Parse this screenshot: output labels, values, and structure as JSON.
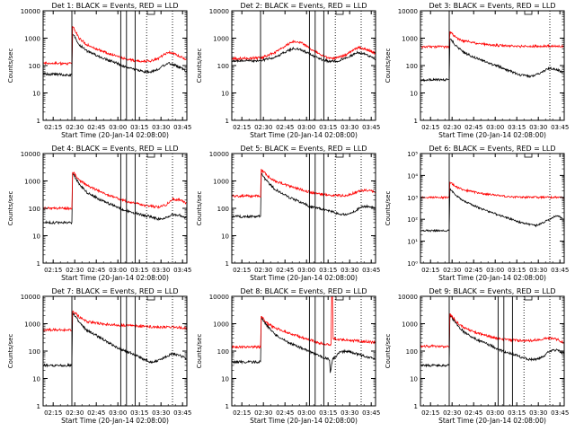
{
  "figure": {
    "subtitle": "Start Time (20-Jan-14 02:08:00)",
    "ylabel": "Counts/sec",
    "xticks": [
      "02:15",
      "02:30",
      "02:45",
      "03:00",
      "03:15",
      "03:30",
      "03:45"
    ],
    "colors": {
      "events": "#000000",
      "lld": "#ff0000",
      "axes": "#000000"
    }
  },
  "chart_data": [
    {
      "type": "line",
      "title": "Det 1: BLACK = Events, RED = LLD",
      "xlabel": "Start Time (20-Jan-14 02:08:00)",
      "ylabel": "Counts/sec",
      "x_unit": "minutes since 02:08:00",
      "xlim": [
        0,
        100
      ],
      "ylim": [
        1,
        10000
      ],
      "yscale": "log",
      "ytick_style": "plain",
      "yticks": [
        "1",
        "10",
        "100",
        "1000",
        "10000"
      ],
      "vlines_solid": [
        20,
        54,
        58,
        64
      ],
      "vlines_dotted": [
        72,
        90
      ],
      "flag": 75,
      "series": [
        {
          "name": "Events",
          "color": "#000000",
          "x": [
            0,
            20,
            20.5,
            25,
            30,
            40,
            50,
            55,
            60,
            65,
            70,
            75,
            80,
            85,
            88,
            92,
            96,
            100
          ],
          "values": [
            50,
            45,
            1500,
            600,
            350,
            200,
            130,
            100,
            80,
            70,
            60,
            60,
            75,
            110,
            120,
            100,
            80,
            60
          ]
        },
        {
          "name": "LLD",
          "color": "#ff0000",
          "x": [
            0,
            20,
            20.5,
            25,
            30,
            40,
            50,
            55,
            60,
            65,
            70,
            75,
            80,
            85,
            88,
            92,
            96,
            100
          ],
          "values": [
            120,
            120,
            2800,
            1000,
            600,
            350,
            230,
            190,
            160,
            150,
            145,
            150,
            180,
            270,
            300,
            260,
            210,
            160
          ]
        }
      ]
    },
    {
      "type": "line",
      "title": "Det 2: BLACK = Events, RED = LLD",
      "xlabel": "Start Time (20-Jan-14 02:08:00)",
      "ylabel": "Counts/sec",
      "x_unit": "minutes since 02:08:00",
      "xlim": [
        0,
        100
      ],
      "ylim": [
        1,
        10000
      ],
      "yscale": "log",
      "ytick_style": "plain",
      "yticks": [
        "1",
        "10",
        "100",
        "1000",
        "10000"
      ],
      "vlines_solid": [
        20,
        54,
        58,
        64
      ],
      "vlines_dotted": [
        72,
        90
      ],
      "flag": 75,
      "series": [
        {
          "name": "Events",
          "color": "#000000",
          "x": [
            0,
            20,
            30,
            38,
            43,
            48,
            55,
            62,
            68,
            74,
            80,
            85,
            88,
            92,
            96,
            100
          ],
          "values": [
            150,
            150,
            200,
            330,
            420,
            380,
            250,
            170,
            140,
            150,
            190,
            260,
            300,
            270,
            220,
            170
          ]
        },
        {
          "name": "LLD",
          "color": "#ff0000",
          "x": [
            0,
            20,
            30,
            38,
            43,
            48,
            55,
            62,
            68,
            74,
            80,
            85,
            88,
            92,
            96,
            100
          ],
          "values": [
            180,
            190,
            300,
            550,
            750,
            700,
            400,
            250,
            180,
            190,
            260,
            380,
            450,
            420,
            350,
            280
          ]
        }
      ]
    },
    {
      "type": "line",
      "title": "Det 3: BLACK = Events, RED = LLD",
      "xlabel": "Start Time (20-Jan-14 02:08:00)",
      "ylabel": "Counts/sec",
      "x_unit": "minutes since 02:08:00",
      "xlim": [
        0,
        100
      ],
      "ylim": [
        1,
        10000
      ],
      "yscale": "log",
      "ytick_style": "plain",
      "yticks": [
        "1",
        "10",
        "100",
        "1000",
        "10000"
      ],
      "vlines_solid": [
        20
      ],
      "vlines_dotted": [
        90
      ],
      "flag": 75,
      "series": [
        {
          "name": "Events",
          "color": "#000000",
          "x": [
            0,
            20,
            20.5,
            25,
            30,
            40,
            50,
            55,
            60,
            65,
            70,
            75,
            80,
            85,
            90,
            95,
            100
          ],
          "values": [
            30,
            30,
            1000,
            500,
            300,
            180,
            110,
            90,
            70,
            55,
            45,
            40,
            45,
            60,
            80,
            70,
            55
          ]
        },
        {
          "name": "LLD",
          "color": "#ff0000",
          "x": [
            0,
            20,
            20.5,
            25,
            30,
            40,
            50,
            60,
            70,
            80,
            90,
            100
          ],
          "values": [
            480,
            480,
            1700,
            1000,
            800,
            650,
            560,
            520,
            500,
            510,
            520,
            500
          ]
        }
      ]
    },
    {
      "type": "line",
      "title": "Det 4: BLACK = Events, RED = LLD",
      "xlabel": "Start Time (20-Jan-14 02:08:00)",
      "ylabel": "Counts/sec",
      "x_unit": "minutes since 02:08:00",
      "xlim": [
        0,
        100
      ],
      "ylim": [
        1,
        10000
      ],
      "yscale": "log",
      "ytick_style": "plain",
      "yticks": [
        "1",
        "10",
        "100",
        "1000",
        "10000"
      ],
      "vlines_solid": [
        54,
        58,
        64
      ],
      "vlines_dotted": [
        72,
        90
      ],
      "flag": 75,
      "series": [
        {
          "name": "Events",
          "color": "#000000",
          "x": [
            0,
            20,
            20.5,
            25,
            30,
            40,
            50,
            55,
            60,
            65,
            70,
            75,
            80,
            85,
            90,
            95,
            100
          ],
          "values": [
            30,
            30,
            1900,
            800,
            400,
            200,
            120,
            90,
            75,
            65,
            55,
            50,
            40,
            45,
            60,
            55,
            45
          ]
        },
        {
          "name": "LLD",
          "color": "#ff0000",
          "x": [
            0,
            20,
            20.5,
            25,
            30,
            40,
            50,
            55,
            60,
            65,
            70,
            75,
            80,
            85,
            90,
            95,
            100
          ],
          "values": [
            100,
            100,
            2200,
            1100,
            700,
            400,
            250,
            200,
            170,
            150,
            130,
            120,
            110,
            130,
            220,
            200,
            150
          ]
        }
      ]
    },
    {
      "type": "line",
      "title": "Det 5: BLACK = Events, RED = LLD",
      "xlabel": "Start Time (20-Jan-14 02:08:00)",
      "ylabel": "Counts/sec",
      "x_unit": "minutes since 02:08:00",
      "xlim": [
        0,
        100
      ],
      "ylim": [
        1,
        10000
      ],
      "yscale": "log",
      "ytick_style": "plain",
      "yticks": [
        "1",
        "10",
        "100",
        "1000",
        "10000"
      ],
      "vlines_solid": [
        54,
        58,
        64
      ],
      "vlines_dotted": [
        72,
        90
      ],
      "flag": 75,
      "series": [
        {
          "name": "Events",
          "color": "#000000",
          "x": [
            0,
            20,
            20.5,
            25,
            30,
            40,
            50,
            55,
            60,
            65,
            70,
            75,
            80,
            85,
            90,
            95,
            100
          ],
          "values": [
            50,
            50,
            1800,
            900,
            500,
            250,
            150,
            110,
            100,
            90,
            75,
            60,
            60,
            75,
            110,
            120,
            100
          ]
        },
        {
          "name": "LLD",
          "color": "#ff0000",
          "x": [
            0,
            20,
            20.5,
            25,
            30,
            40,
            50,
            55,
            60,
            65,
            70,
            75,
            80,
            85,
            90,
            95,
            100
          ],
          "values": [
            280,
            280,
            2600,
            1500,
            1000,
            650,
            450,
            380,
            340,
            320,
            300,
            290,
            300,
            360,
            440,
            460,
            380
          ]
        }
      ]
    },
    {
      "type": "line",
      "title": "Det 6: BLACK = Events, RED = LLD",
      "xlabel": "Start Time (20-Jan-14 02:08:00)",
      "ylabel": "Counts/sec",
      "x_unit": "minutes since 02:08:00",
      "xlim": [
        0,
        100
      ],
      "ylim": [
        1,
        100000
      ],
      "yscale": "log",
      "ytick_style": "power",
      "yticks": [
        "10⁰",
        "10¹",
        "10²",
        "10³",
        "10⁴",
        "10⁵"
      ],
      "vlines_solid": [
        20
      ],
      "vlines_dotted": [
        90
      ],
      "flag": 75,
      "series": [
        {
          "name": "Events",
          "color": "#000000",
          "x": [
            0,
            20,
            20.5,
            25,
            30,
            40,
            50,
            55,
            60,
            65,
            70,
            75,
            80,
            85,
            90,
            95,
            100
          ],
          "values": [
            30,
            30,
            2500,
            1200,
            700,
            350,
            200,
            150,
            120,
            90,
            70,
            60,
            50,
            70,
            100,
            150,
            100
          ]
        },
        {
          "name": "LLD",
          "color": "#ff0000",
          "x": [
            0,
            20,
            20.5,
            25,
            30,
            40,
            50,
            60,
            70,
            80,
            90,
            100
          ],
          "values": [
            1000,
            1000,
            5000,
            3000,
            2200,
            1600,
            1300,
            1100,
            1000,
            1000,
            1000,
            1000
          ]
        }
      ]
    },
    {
      "type": "line",
      "title": "Det 7: BLACK = Events, RED = LLD",
      "xlabel": "Start Time (20-Jan-14 02:08:00)",
      "ylabel": "Counts/sec",
      "x_unit": "minutes since 02:08:00",
      "xlim": [
        0,
        100
      ],
      "ylim": [
        1,
        10000
      ],
      "yscale": "log",
      "ytick_style": "plain",
      "yticks": [
        "1",
        "10",
        "100",
        "1000",
        "10000"
      ],
      "vlines_solid": [
        20,
        54,
        58,
        64
      ],
      "vlines_dotted": [
        72,
        90
      ],
      "flag": 75,
      "series": [
        {
          "name": "Events",
          "color": "#000000",
          "x": [
            0,
            20,
            20.5,
            25,
            30,
            40,
            50,
            55,
            60,
            65,
            70,
            75,
            80,
            85,
            90,
            95,
            100
          ],
          "values": [
            30,
            30,
            2500,
            1200,
            600,
            300,
            150,
            110,
            90,
            70,
            50,
            40,
            45,
            60,
            80,
            70,
            50
          ]
        },
        {
          "name": "LLD",
          "color": "#ff0000",
          "x": [
            0,
            20,
            20.5,
            25,
            30,
            40,
            50,
            60,
            70,
            80,
            90,
            100
          ],
          "values": [
            600,
            600,
            3000,
            1800,
            1200,
            1000,
            900,
            850,
            800,
            750,
            750,
            700
          ]
        }
      ]
    },
    {
      "type": "line",
      "title": "Det 8: BLACK = Events, RED = LLD",
      "xlabel": "Start Time (20-Jan-14 02:08:00)",
      "ylabel": "Counts/sec",
      "x_unit": "minutes since 02:08:00",
      "xlim": [
        0,
        100
      ],
      "ylim": [
        1,
        10000
      ],
      "yscale": "log",
      "ytick_style": "plain",
      "yticks": [
        "1",
        "10",
        "100",
        "1000",
        "10000"
      ],
      "vlines_solid": [
        54,
        58,
        64
      ],
      "vlines_dotted": [
        72,
        90
      ],
      "flag": 75,
      "series": [
        {
          "name": "Events",
          "color": "#000000",
          "x": [
            0,
            20,
            20.5,
            25,
            30,
            40,
            50,
            55,
            60,
            65,
            68,
            68.5,
            70,
            72,
            75,
            80,
            85,
            90,
            95,
            100
          ],
          "values": [
            40,
            40,
            1700,
            800,
            400,
            200,
            120,
            90,
            70,
            55,
            50,
            15,
            50,
            60,
            90,
            100,
            85,
            70,
            60,
            50
          ]
        },
        {
          "name": "LLD",
          "color": "#ff0000",
          "x": [
            0,
            20,
            20.5,
            25,
            30,
            40,
            50,
            55,
            60,
            65,
            69,
            69.5,
            70,
            70.5,
            75,
            80,
            85,
            90,
            95,
            100
          ],
          "values": [
            140,
            140,
            1900,
            1000,
            700,
            450,
            300,
            250,
            200,
            180,
            170,
            10000,
            10000,
            280,
            260,
            250,
            240,
            230,
            220,
            200
          ]
        }
      ]
    },
    {
      "type": "line",
      "title": "Det 9: BLACK = Events, RED = LLD",
      "xlabel": "Start Time (20-Jan-14 02:08:00)",
      "ylabel": "Counts/sec",
      "x_unit": "minutes since 02:08:00",
      "xlim": [
        0,
        100
      ],
      "ylim": [
        1,
        10000
      ],
      "yscale": "log",
      "ytick_style": "plain",
      "yticks": [
        "1",
        "10",
        "100",
        "1000",
        "10000"
      ],
      "vlines_solid": [
        20,
        54,
        58,
        64
      ],
      "vlines_dotted": [
        72,
        90
      ],
      "flag": 75,
      "series": [
        {
          "name": "Events",
          "color": "#000000",
          "x": [
            0,
            20,
            20.5,
            25,
            30,
            40,
            50,
            55,
            60,
            65,
            70,
            75,
            80,
            85,
            90,
            95,
            100
          ],
          "values": [
            30,
            30,
            2000,
            1000,
            500,
            250,
            150,
            110,
            90,
            75,
            60,
            50,
            50,
            60,
            100,
            110,
            80
          ]
        },
        {
          "name": "LLD",
          "color": "#ff0000",
          "x": [
            0,
            20,
            20.5,
            25,
            30,
            40,
            50,
            55,
            60,
            65,
            70,
            75,
            80,
            85,
            90,
            95,
            100
          ],
          "values": [
            150,
            150,
            2300,
            1200,
            700,
            450,
            320,
            280,
            260,
            250,
            240,
            240,
            250,
            280,
            300,
            270,
            200
          ]
        }
      ]
    }
  ]
}
